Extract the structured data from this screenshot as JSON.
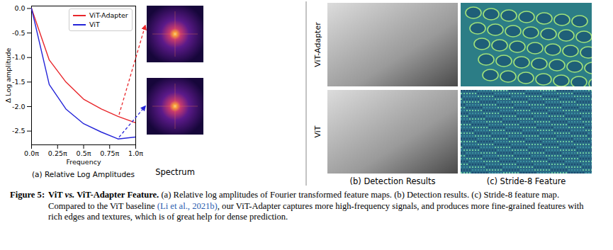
{
  "chart_data": {
    "type": "line",
    "title": "(a) Relative Log Amplitudes",
    "x_label": "Frequency",
    "y_label": "Δ Log amplitude",
    "x": [
      0,
      0.17,
      0.33,
      0.5,
      0.67,
      0.83,
      1.0
    ],
    "series": [
      {
        "name": "ViT-Adapter",
        "color": "#e8262b",
        "values": [
          0,
          -1.05,
          -1.5,
          -1.85,
          -2.05,
          -2.2,
          -2.33
        ]
      },
      {
        "name": "ViT",
        "color": "#2424d8",
        "values": [
          0,
          -1.55,
          -2.05,
          -2.35,
          -2.52,
          -2.66,
          -2.62
        ]
      }
    ],
    "xlim": [
      0,
      1.0
    ],
    "ylim": [
      -2.78,
      0.05
    ],
    "xticks": [
      {
        "value": 0,
        "label": "0.0π"
      },
      {
        "value": 0.25,
        "label": "0.25π"
      },
      {
        "value": 0.5,
        "label": "0.5π"
      },
      {
        "value": 0.75,
        "label": "0.75π"
      },
      {
        "value": 1.0,
        "label": "1.0π"
      }
    ],
    "yticks": [
      {
        "value": 0,
        "label": "0.0"
      },
      {
        "value": -0.5,
        "label": "-0.5"
      },
      {
        "value": -1.0,
        "label": "-1.0"
      },
      {
        "value": -1.5,
        "label": "-1.5"
      },
      {
        "value": -2.0,
        "label": "-2.0"
      },
      {
        "value": -2.5,
        "label": "-2.5"
      }
    ],
    "legend": "upper right",
    "grid": false
  },
  "panels": {
    "spectrum_label": "Spectrum",
    "row_labels": [
      "ViT-Adapter",
      "ViT"
    ],
    "detection_label": "(b) Detection Results",
    "feature_label": "(c) Stride-8 Feature"
  },
  "caption": {
    "figure": "Figure 5:",
    "title_parts": [
      "ViT",
      "vs.",
      "ViT-Adapter Feature."
    ],
    "text_before_cite": "(a) Relative log amplitudes of Fourier transformed feature maps. (b) Detection results. (c) Stride-8 feature map. Compared to the ViT baseline",
    "cite": "(Li et al., 2021b)",
    "text_after_cite": ", our ViT-Adapter captures more high-frequency signals, and produces more fine-grained features with rich edges and textures, which is of great help for dense prediction."
  }
}
